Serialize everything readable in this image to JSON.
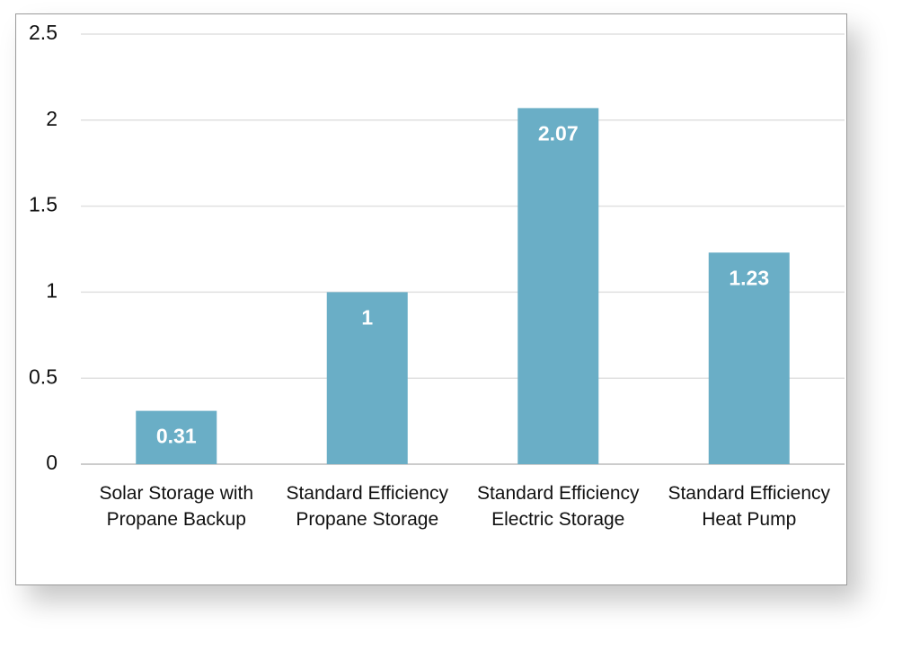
{
  "chart_data": {
    "type": "bar",
    "categories": [
      "Solar Storage with Propane Backup",
      "Standard Efficiency Propane Storage",
      "Standard Efficiency Electric Storage",
      "Standard Efficiency Heat Pump"
    ],
    "values": [
      0.31,
      1,
      2.07,
      1.23
    ],
    "color": "#6aaec6",
    "ylim": [
      0,
      2.5
    ],
    "yticks": [
      0,
      0.5,
      1,
      1.5,
      2,
      2.5
    ],
    "grid": true
  }
}
